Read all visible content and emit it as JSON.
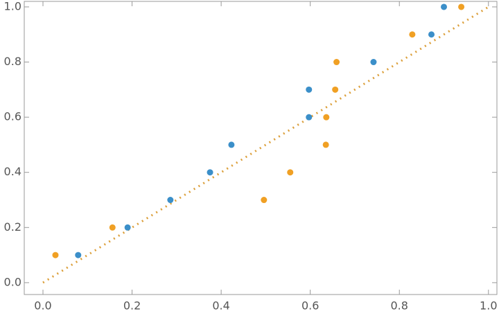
{
  "chart_data": {
    "type": "scatter",
    "series": [
      {
        "color": "#3b8fc9",
        "x": [
          0.079,
          0.19,
          0.286,
          0.375,
          0.423,
          0.597,
          0.597,
          0.742,
          0.872,
          0.9
        ],
        "values": [
          0.1,
          0.2,
          0.3,
          0.4,
          0.5,
          0.6,
          0.7,
          0.8,
          0.9,
          1.0
        ]
      },
      {
        "color": "#f0a024",
        "x": [
          0.028,
          0.156,
          0.496,
          0.555,
          0.635,
          0.636,
          0.656,
          0.659,
          0.829,
          0.939
        ],
        "values": [
          0.1,
          0.2,
          0.3,
          0.4,
          0.5,
          0.6,
          0.7,
          0.8,
          0.9,
          1.0
        ]
      }
    ],
    "reference_line": {
      "x": [
        0,
        1
      ],
      "values": [
        0,
        1
      ],
      "color": "#dca03c",
      "style": "dotted"
    },
    "xlim": [
      -0.042,
      1.019
    ],
    "ylim": [
      -0.043,
      1.02
    ],
    "xticks": [
      {
        "value": 0,
        "label": "0.0"
      },
      0.2,
      0.4,
      0.6,
      0.8,
      {
        "value": 1,
        "label": "1.0"
      }
    ],
    "yticks": [
      {
        "value": 0,
        "label": "0.0"
      },
      0.2,
      0.4,
      0.6,
      0.8,
      {
        "value": 1,
        "label": "1.0"
      }
    ],
    "grid": false
  }
}
